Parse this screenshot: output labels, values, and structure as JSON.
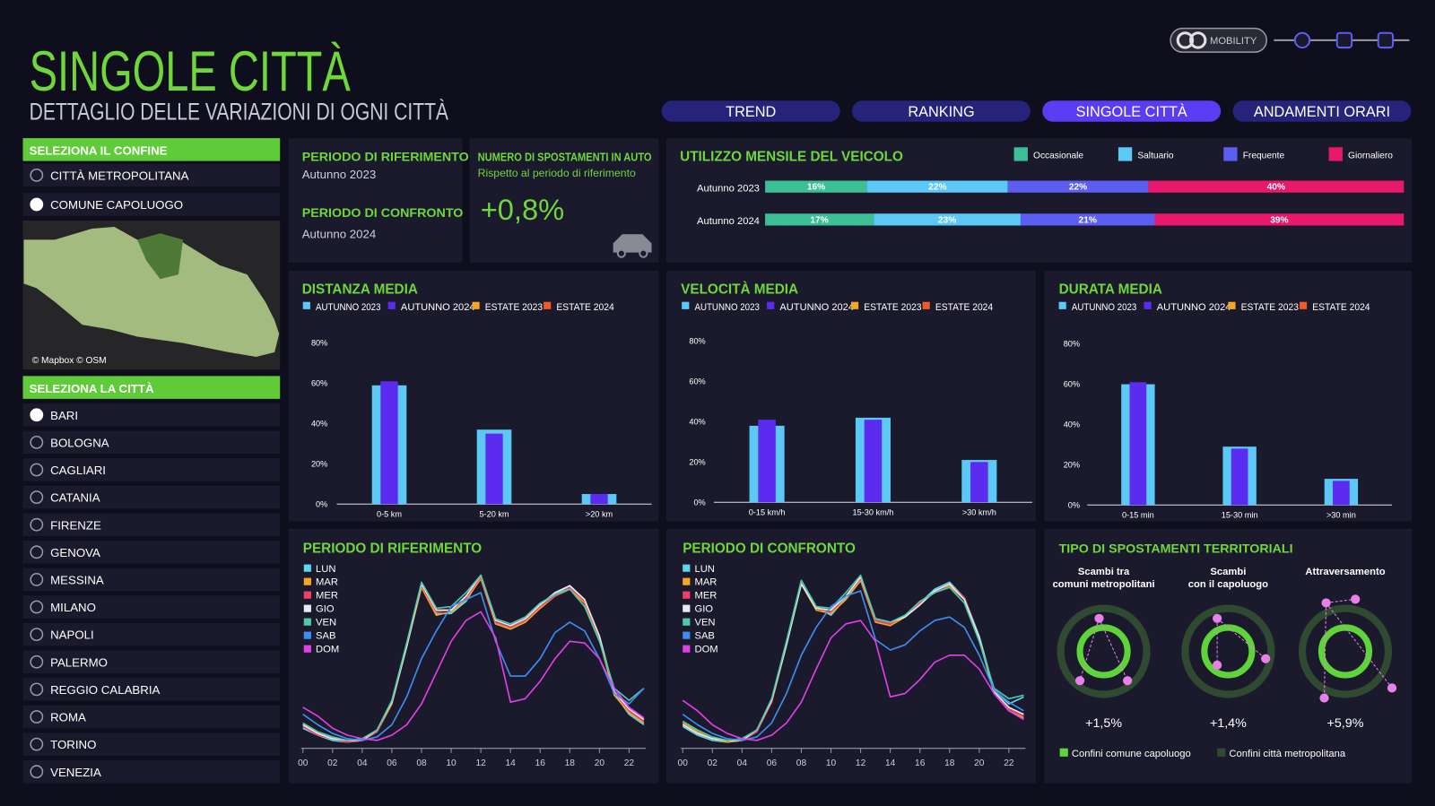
{
  "header": {
    "title": "SINGOLE CITTÀ",
    "subtitle": "DETTAGLIO DELLE VARIAZIONI DI OGNI CITTÀ",
    "logo": "MOBILITY"
  },
  "nav": {
    "items": [
      "TREND",
      "RANKING",
      "SINGOLE CITTÀ",
      "ANDAMENTI ORARI"
    ],
    "active": 2
  },
  "sidebar": {
    "boundary_title": "SELEZIONA IL CONFINE",
    "boundaries": [
      "CITTÀ METROPOLITANA",
      "COMUNE CAPOLUOGO"
    ],
    "boundary_selected": 1,
    "map_attribution": "© Mapbox © OSM",
    "city_title": "SELEZIONA LA CITTÀ",
    "cities": [
      "BARI",
      "BOLOGNA",
      "CAGLIARI",
      "CATANIA",
      "FIRENZE",
      "GENOVA",
      "MESSINA",
      "MILANO",
      "NAPOLI",
      "PALERMO",
      "REGGIO CALABRIA",
      "ROMA",
      "TORINO",
      "VENEZIA"
    ],
    "city_selected": 0
  },
  "periods": {
    "reference_title": "PERIODO DI RIFERIMENTO",
    "reference": "Autunno 2023",
    "comparison_title": "PERIODO DI CONFRONTO",
    "comparison": "Autunno 2024"
  },
  "kpi": {
    "title": "NUMERO DI SPOSTAMENTI IN AUTO",
    "subtitle": "Rispetto al periodo di riferimento",
    "value": "+0,8%"
  },
  "territorial": {
    "title": "TIPO DI SPOSTAMENTI TERRITORIALI",
    "items": [
      {
        "label": [
          "Scambi tra",
          "comuni metropolitani"
        ],
        "value": "+1,5%"
      },
      {
        "label": [
          "Scambi",
          "con il capoluogo"
        ],
        "value": "+1,4%"
      },
      {
        "label": [
          "Attraversamento"
        ],
        "value": "+5,9%"
      }
    ],
    "legend": [
      {
        "name": "Confini comune capoluogo",
        "color": "#5fd33a"
      },
      {
        "name": "Confini città metropolitana",
        "color": "#2f4a30"
      }
    ]
  },
  "chart_data": [
    {
      "type": "bar",
      "stacked": true,
      "horizontal": true,
      "title": "UTILIZZO MENSILE DEL VEICOLO",
      "categories": [
        "Autunno 2023",
        "Autunno 2024"
      ],
      "xlim": [
        0,
        100
      ],
      "series": [
        {
          "name": "Occasionale",
          "color": "#3dbf96",
          "values": [
            16,
            17
          ],
          "value_labels": [
            "16%",
            "17%"
          ]
        },
        {
          "name": "Saltuario",
          "color": "#5bc8f5",
          "values": [
            22,
            23
          ],
          "value_labels": [
            "22%",
            "23%"
          ]
        },
        {
          "name": "Frequente",
          "color": "#5b5ef0",
          "values": [
            22,
            21
          ],
          "value_labels": [
            "22%",
            "21%"
          ]
        },
        {
          "name": "Giornaliero",
          "color": "#e8196b",
          "values": [
            40,
            39
          ],
          "value_labels": [
            "40%",
            "39%"
          ]
        }
      ]
    },
    {
      "type": "bar",
      "title": "DISTANZA MEDIA",
      "categories": [
        "0-5 km",
        "5-20 km",
        ">20 km"
      ],
      "ylim": [
        0,
        80
      ],
      "yticks": [
        {
          "value": 0,
          "label": "0%"
        },
        {
          "value": 20,
          "label": "20%"
        },
        {
          "value": 40,
          "label": "40%"
        },
        {
          "value": 60,
          "label": "60%"
        },
        {
          "value": 80,
          "label": "80%"
        }
      ],
      "grid": false,
      "series": [
        {
          "name": "AUTUNNO 2023",
          "color": "#5bc8f5",
          "values": [
            59,
            37,
            5
          ]
        },
        {
          "name": "AUTUNNO 2024",
          "color": "#5b2cf0",
          "values": [
            61,
            35,
            5
          ]
        },
        {
          "name": "ESTATE 2023",
          "color": "#f5a623",
          "values": [
            null,
            null,
            null
          ]
        },
        {
          "name": "ESTATE 2024",
          "color": "#f05a28",
          "values": [
            null,
            null,
            null
          ]
        }
      ]
    },
    {
      "type": "bar",
      "title": "VELOCITÀ MEDIA",
      "categories": [
        "0-15 km/h",
        "15-30 km/h",
        ">30 km/h"
      ],
      "ylim": [
        0,
        80
      ],
      "yticks": [
        {
          "value": 0,
          "label": "0%"
        },
        {
          "value": 20,
          "label": "20%"
        },
        {
          "value": 40,
          "label": "40%"
        },
        {
          "value": 60,
          "label": "60%"
        },
        {
          "value": 80,
          "label": "80%"
        }
      ],
      "grid": false,
      "series": [
        {
          "name": "AUTUNNO 2023",
          "color": "#5bc8f5",
          "values": [
            38,
            42,
            21
          ]
        },
        {
          "name": "AUTUNNO 2024",
          "color": "#5b2cf0",
          "values": [
            41,
            41,
            20
          ]
        },
        {
          "name": "ESTATE 2023",
          "color": "#f5a623",
          "values": [
            null,
            null,
            null
          ]
        },
        {
          "name": "ESTATE 2024",
          "color": "#f05a28",
          "values": [
            null,
            null,
            null
          ]
        }
      ]
    },
    {
      "type": "bar",
      "title": "DURATA MEDIA",
      "categories": [
        "0-15 min",
        "15-30 min",
        ">30 min"
      ],
      "ylim": [
        0,
        80
      ],
      "yticks": [
        {
          "value": 0,
          "label": "0%"
        },
        {
          "value": 20,
          "label": "20%"
        },
        {
          "value": 40,
          "label": "40%"
        },
        {
          "value": 60,
          "label": "60%"
        },
        {
          "value": 80,
          "label": "80%"
        }
      ],
      "grid": false,
      "series": [
        {
          "name": "AUTUNNO 2023",
          "color": "#5bc8f5",
          "values": [
            60,
            29,
            13
          ]
        },
        {
          "name": "AUTUNNO 2024",
          "color": "#5b2cf0",
          "values": [
            61,
            28,
            12
          ]
        },
        {
          "name": "ESTATE 2023",
          "color": "#f5a623",
          "values": [
            null,
            null,
            null
          ]
        },
        {
          "name": "ESTATE 2024",
          "color": "#f05a28",
          "values": [
            null,
            null,
            null
          ]
        }
      ]
    },
    {
      "type": "line",
      "title": "PERIODO DI RIFERIMENTO",
      "x": [
        0,
        1,
        2,
        3,
        4,
        5,
        6,
        7,
        8,
        9,
        10,
        11,
        12,
        13,
        14,
        15,
        16,
        17,
        18,
        19,
        20,
        21,
        22,
        23
      ],
      "xlim": [
        0,
        23
      ],
      "ylim": [
        0,
        100
      ],
      "xticks": [
        {
          "value": 0,
          "label": "00"
        },
        {
          "value": 2,
          "label": "02"
        },
        {
          "value": 4,
          "label": "04"
        },
        {
          "value": 6,
          "label": "06"
        },
        {
          "value": 8,
          "label": "08"
        },
        10,
        12,
        14,
        16,
        18,
        20,
        22
      ],
      "series": [
        {
          "name": "LUN",
          "color": "#5bd8f0",
          "values": [
            10,
            6,
            3,
            2,
            3,
            8,
            25,
            58,
            92,
            76,
            76,
            83,
            97,
            70,
            68,
            72,
            80,
            87,
            92,
            84,
            62,
            30,
            18,
            12
          ]
        },
        {
          "name": "MAR",
          "color": "#f5a623",
          "values": [
            12,
            7,
            4,
            2,
            3,
            8,
            24,
            57,
            91,
            75,
            77,
            84,
            96,
            70,
            67,
            71,
            79,
            86,
            90,
            82,
            61,
            29,
            19,
            13
          ]
        },
        {
          "name": "MER",
          "color": "#f0406a",
          "values": [
            11,
            6,
            4,
            2,
            3,
            8,
            25,
            58,
            92,
            77,
            78,
            85,
            97,
            71,
            68,
            72,
            80,
            86,
            91,
            83,
            62,
            31,
            20,
            14
          ]
        },
        {
          "name": "GIO",
          "color": "#e8e8f0",
          "values": [
            12,
            7,
            4,
            3,
            3,
            9,
            25,
            57,
            93,
            78,
            78,
            86,
            98,
            72,
            69,
            73,
            81,
            88,
            92,
            84,
            63,
            31,
            21,
            15
          ]
        },
        {
          "name": "VEN",
          "color": "#4fc9a8",
          "values": [
            13,
            8,
            5,
            3,
            4,
            9,
            26,
            59,
            94,
            79,
            80,
            88,
            98,
            73,
            70,
            74,
            82,
            87,
            90,
            80,
            60,
            33,
            26,
            33
          ]
        },
        {
          "name": "SAB",
          "color": "#3d8ef0",
          "values": [
            18,
            12,
            7,
            4,
            3,
            5,
            12,
            28,
            50,
            66,
            80,
            84,
            88,
            60,
            40,
            40,
            50,
            65,
            71,
            66,
            50,
            30,
            24,
            33
          ]
        },
        {
          "name": "DOM",
          "color": "#e040e8",
          "values": [
            22,
            17,
            10,
            6,
            4,
            3,
            6,
            12,
            24,
            42,
            60,
            72,
            77,
            62,
            25,
            27,
            37,
            50,
            60,
            59,
            50,
            33,
            22,
            16
          ]
        }
      ]
    },
    {
      "type": "line",
      "title": "PERIODO DI CONFRONTO",
      "x": [
        0,
        1,
        2,
        3,
        4,
        5,
        6,
        7,
        8,
        9,
        10,
        11,
        12,
        13,
        14,
        15,
        16,
        17,
        18,
        19,
        20,
        21,
        22,
        23
      ],
      "xlim": [
        0,
        23
      ],
      "ylim": [
        0,
        100
      ],
      "xticks": [
        {
          "value": 0,
          "label": "00"
        },
        {
          "value": 2,
          "label": "02"
        },
        {
          "value": 4,
          "label": "04"
        },
        {
          "value": 6,
          "label": "06"
        },
        {
          "value": 8,
          "label": "08"
        },
        10,
        12,
        14,
        16,
        18,
        20,
        22
      ],
      "series": [
        {
          "name": "LUN",
          "color": "#5bd8f0",
          "values": [
            11,
            6,
            3,
            2,
            3,
            8,
            26,
            60,
            95,
            80,
            75,
            85,
            96,
            72,
            70,
            75,
            82,
            90,
            94,
            85,
            63,
            32,
            24,
            28
          ]
        },
        {
          "name": "MAR",
          "color": "#f5a623",
          "values": [
            13,
            8,
            4,
            2,
            3,
            9,
            25,
            58,
            93,
            78,
            76,
            84,
            95,
            71,
            69,
            74,
            81,
            89,
            92,
            84,
            61,
            30,
            20,
            16
          ]
        },
        {
          "name": "MER",
          "color": "#f0406a",
          "values": [
            12,
            7,
            4,
            3,
            3,
            8,
            25,
            59,
            94,
            79,
            77,
            86,
            96,
            72,
            70,
            75,
            82,
            88,
            93,
            85,
            62,
            31,
            21,
            17
          ]
        },
        {
          "name": "GIO",
          "color": "#e8e8f0",
          "values": [
            12,
            7,
            4,
            3,
            3,
            9,
            26,
            58,
            93,
            79,
            78,
            86,
            97,
            73,
            71,
            74,
            81,
            89,
            93,
            84,
            62,
            31,
            22,
            18
          ]
        },
        {
          "name": "VEN",
          "color": "#4fc9a8",
          "values": [
            14,
            9,
            5,
            3,
            4,
            9,
            27,
            60,
            95,
            80,
            79,
            88,
            98,
            73,
            71,
            75,
            83,
            88,
            91,
            82,
            60,
            33,
            27,
            29
          ]
        },
        {
          "name": "SAB",
          "color": "#3d8ef0",
          "values": [
            18,
            12,
            7,
            4,
            3,
            5,
            13,
            30,
            52,
            68,
            80,
            86,
            89,
            61,
            55,
            58,
            66,
            72,
            74,
            68,
            52,
            32,
            25,
            20
          ]
        },
        {
          "name": "DOM",
          "color": "#e040e8",
          "values": [
            26,
            20,
            12,
            7,
            4,
            3,
            6,
            13,
            25,
            44,
            62,
            70,
            72,
            60,
            28,
            30,
            38,
            48,
            52,
            52,
            44,
            30,
            20,
            15
          ]
        }
      ]
    }
  ]
}
